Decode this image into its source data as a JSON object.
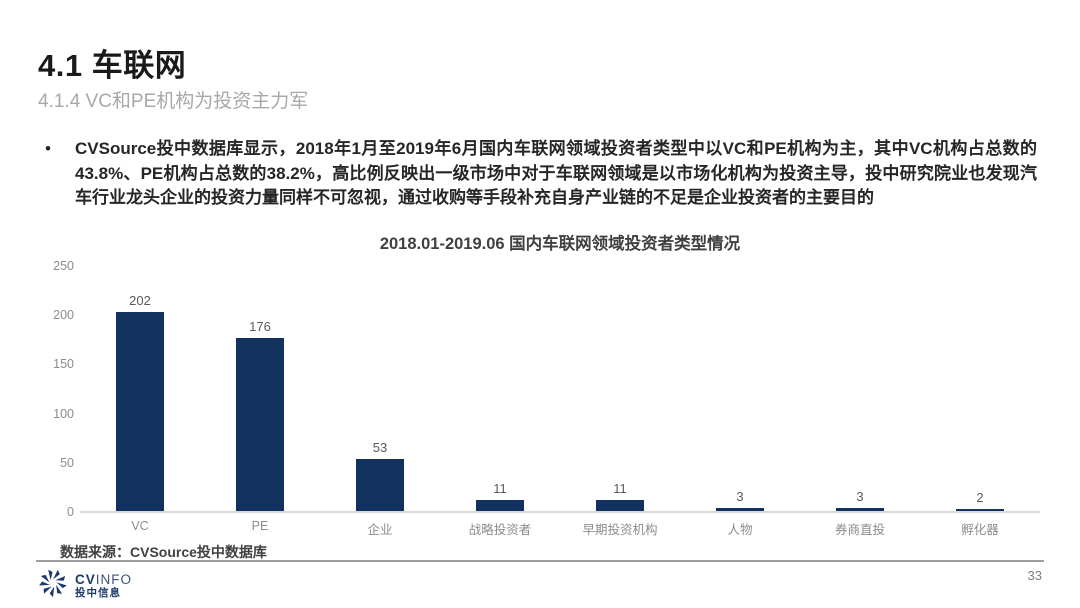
{
  "page": {
    "title": "4.1 车联网",
    "subtitle": "4.1.4 VC和PE机构为投资主力军",
    "bullet_marker": "•",
    "bullet_text": "CVSource投中数据库显示，2018年1月至2019年6月国内车联网领域投资者类型中以VC和PE机构为主，其中VC机构占总数的43.8%、PE机构占总数的38.2%，高比例反映出一级市场中对于车联网领域是以市场化机构为投资主导，投中研究院业也发现汽车行业龙头企业的投资力量同样不可忽视，通过收购等手段补充自身产业链的不足是企业投资者的主要目的",
    "page_number": "33"
  },
  "chart_data": {
    "type": "bar",
    "title": "2018.01-2019.06 国内车联网领域投资者类型情况",
    "categories": [
      "VC",
      "PE",
      "企业",
      "战略投资者",
      "早期投资机构",
      "人物",
      "券商直投",
      "孵化器"
    ],
    "values": [
      202,
      176,
      53,
      11,
      11,
      3,
      3,
      2
    ],
    "y_ticks": [
      0,
      50,
      100,
      150,
      200,
      250
    ],
    "ylim": [
      0,
      250
    ],
    "xlabel": "",
    "ylabel": "",
    "grid": false,
    "legend": false,
    "data_labels": true,
    "bar_color": "#12315f"
  },
  "source_note": "数据来源：CVSource投中数据库",
  "footer": {
    "logo_cv": "CV",
    "logo_info": "INFO",
    "logo_cn": "投中信息"
  },
  "colors": {
    "navy": "#1b3a6b",
    "bar": "#12315f",
    "axis_text": "#8c8c8c",
    "baseline": "#d9d9d9"
  }
}
